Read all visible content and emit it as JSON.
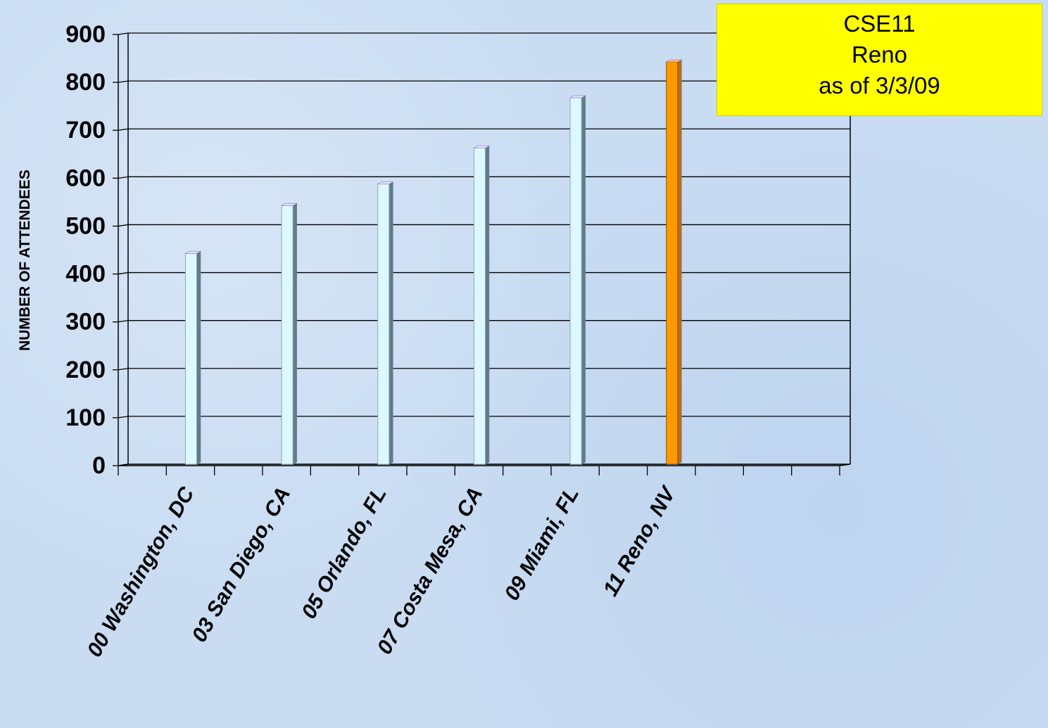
{
  "callout": {
    "line1": "CSE11",
    "line2": "Reno",
    "line3": "as of 3/3/09",
    "background": "#ffff00"
  },
  "chart_data": {
    "type": "bar",
    "ylabel": "NUMBER OF ATTENDEES",
    "xlabel": "",
    "ylim": [
      0,
      900
    ],
    "yticks": [
      0,
      100,
      200,
      300,
      400,
      500,
      600,
      700,
      800,
      900
    ],
    "grid": true,
    "categories": [
      "00 Washington, DC",
      "03 San Diego, CA",
      "05 Orlando, FL",
      "07 Costa Mesa, CA",
      "09 Miami, FL",
      "11 Reno, NV"
    ],
    "values": [
      440,
      540,
      585,
      660,
      765,
      840
    ],
    "colors": [
      "#dff8ff",
      "#dff8ff",
      "#dff8ff",
      "#dff8ff",
      "#dff8ff",
      "#ff9900"
    ],
    "highlight_index": 5
  }
}
